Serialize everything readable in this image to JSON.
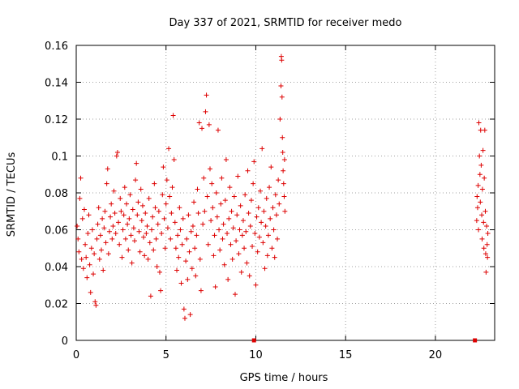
{
  "chart_data": {
    "type": "scatter",
    "title": "Day 337 of 2021, SRMTID for receiver medo",
    "xlabel": "GPS time / hours",
    "ylabel": "SRMTID / TECUs",
    "xlim": [
      0,
      23.3
    ],
    "ylim": [
      0,
      0.16
    ],
    "x_ticks": [
      0,
      5,
      10,
      15,
      20
    ],
    "x_tick_labels": [
      "0",
      "5",
      "10",
      "15",
      "20"
    ],
    "y_ticks": [
      0,
      0.02,
      0.04,
      0.06,
      0.08,
      0.1,
      0.12,
      0.14,
      0.16
    ],
    "y_tick_labels": [
      "0",
      "0.02",
      "0.04",
      "0.06",
      "0.08",
      "0.1",
      "0.12",
      "0.14",
      "0.16"
    ],
    "grid": true,
    "marker": "plus",
    "color": "#dd0000",
    "zero_markers": [
      {
        "x": 9.9,
        "y": 0
      },
      {
        "x": 22.2,
        "y": 0
      }
    ],
    "series": [
      {
        "points": [
          [
            0.05,
            0.062
          ],
          [
            0.1,
            0.055
          ],
          [
            0.15,
            0.048
          ],
          [
            0.2,
            0.077
          ],
          [
            0.25,
            0.088
          ],
          [
            0.3,
            0.044
          ],
          [
            0.35,
            0.066
          ],
          [
            0.4,
            0.039
          ],
          [
            0.45,
            0.071
          ],
          [
            0.5,
            0.052
          ],
          [
            0.55,
            0.045
          ],
          [
            0.6,
            0.034
          ],
          [
            0.65,
            0.058
          ],
          [
            0.7,
            0.068
          ],
          [
            0.75,
            0.041
          ],
          [
            0.8,
            0.026
          ],
          [
            0.85,
            0.05
          ],
          [
            0.9,
            0.06
          ],
          [
            0.95,
            0.036
          ],
          [
            1.0,
            0.047
          ],
          [
            1.05,
            0.021
          ],
          [
            1.1,
            0.019
          ],
          [
            1.15,
            0.055
          ],
          [
            1.2,
            0.063
          ],
          [
            1.25,
            0.072
          ],
          [
            1.3,
            0.044
          ],
          [
            1.35,
            0.057
          ],
          [
            1.4,
            0.049
          ],
          [
            1.45,
            0.066
          ],
          [
            1.5,
            0.038
          ],
          [
            1.55,
            0.061
          ],
          [
            1.6,
            0.07
          ],
          [
            1.65,
            0.053
          ],
          [
            1.7,
            0.085
          ],
          [
            1.75,
            0.093
          ],
          [
            1.8,
            0.047
          ],
          [
            1.85,
            0.059
          ],
          [
            1.9,
            0.067
          ],
          [
            1.95,
            0.074
          ],
          [
            2.0,
            0.055
          ],
          [
            2.05,
            0.062
          ],
          [
            2.1,
            0.081
          ],
          [
            2.15,
            0.069
          ],
          [
            2.2,
            0.058
          ],
          [
            2.25,
            0.1
          ],
          [
            2.3,
            0.102
          ],
          [
            2.35,
            0.064
          ],
          [
            2.4,
            0.052
          ],
          [
            2.45,
            0.077
          ],
          [
            2.5,
            0.07
          ],
          [
            2.55,
            0.045
          ],
          [
            2.6,
            0.06
          ],
          [
            2.65,
            0.068
          ],
          [
            2.7,
            0.083
          ],
          [
            2.75,
            0.055
          ],
          [
            2.8,
            0.074
          ],
          [
            2.85,
            0.063
          ],
          [
            2.9,
            0.049
          ],
          [
            2.95,
            0.066
          ],
          [
            3.0,
            0.079
          ],
          [
            3.05,
            0.057
          ],
          [
            3.1,
            0.042
          ],
          [
            3.15,
            0.071
          ],
          [
            3.2,
            0.061
          ],
          [
            3.25,
            0.054
          ],
          [
            3.3,
            0.087
          ],
          [
            3.35,
            0.096
          ],
          [
            3.4,
            0.068
          ],
          [
            3.45,
            0.075
          ],
          [
            3.5,
            0.059
          ],
          [
            3.55,
            0.048
          ],
          [
            3.6,
            0.082
          ],
          [
            3.65,
            0.065
          ],
          [
            3.7,
            0.073
          ],
          [
            3.75,
            0.056
          ],
          [
            3.8,
            0.046
          ],
          [
            3.85,
            0.069
          ],
          [
            3.9,
            0.058
          ],
          [
            3.95,
            0.062
          ],
          [
            4.0,
            0.044
          ],
          [
            4.05,
            0.077
          ],
          [
            4.1,
            0.053
          ],
          [
            4.15,
            0.024
          ],
          [
            4.2,
            0.06
          ],
          [
            4.25,
            0.067
          ],
          [
            4.3,
            0.049
          ],
          [
            4.35,
            0.085
          ],
          [
            4.4,
            0.072
          ],
          [
            4.45,
            0.055
          ],
          [
            4.5,
            0.04
          ],
          [
            4.55,
            0.063
          ],
          [
            4.6,
            0.07
          ],
          [
            4.65,
            0.037
          ],
          [
            4.7,
            0.027
          ],
          [
            4.75,
            0.058
          ],
          [
            4.8,
            0.079
          ],
          [
            4.85,
            0.094
          ],
          [
            4.9,
            0.066
          ],
          [
            4.95,
            0.05
          ],
          [
            5.0,
            0.074
          ],
          [
            5.05,
            0.087
          ],
          [
            5.1,
            0.061
          ],
          [
            5.15,
            0.104
          ],
          [
            5.2,
            0.078
          ],
          [
            5.25,
            0.055
          ],
          [
            5.3,
            0.069
          ],
          [
            5.35,
            0.083
          ],
          [
            5.4,
            0.122
          ],
          [
            5.45,
            0.098
          ],
          [
            5.5,
            0.064
          ],
          [
            5.55,
            0.05
          ],
          [
            5.6,
            0.038
          ],
          [
            5.65,
            0.057
          ],
          [
            5.7,
            0.045
          ],
          [
            5.75,
            0.072
          ],
          [
            5.8,
            0.06
          ],
          [
            5.85,
            0.031
          ],
          [
            5.9,
            0.052
          ],
          [
            5.95,
            0.066
          ],
          [
            6.0,
            0.017
          ],
          [
            6.05,
            0.012
          ],
          [
            6.1,
            0.043
          ],
          [
            6.15,
            0.055
          ],
          [
            6.2,
            0.033
          ],
          [
            6.25,
            0.068
          ],
          [
            6.3,
            0.048
          ],
          [
            6.35,
            0.014
          ],
          [
            6.4,
            0.059
          ],
          [
            6.45,
            0.039
          ],
          [
            6.5,
            0.062
          ],
          [
            6.55,
            0.075
          ],
          [
            6.6,
            0.05
          ],
          [
            6.65,
            0.035
          ],
          [
            6.7,
            0.057
          ],
          [
            6.75,
            0.082
          ],
          [
            6.8,
            0.069
          ],
          [
            6.85,
            0.118
          ],
          [
            6.9,
            0.044
          ],
          [
            6.95,
            0.027
          ],
          [
            7.0,
            0.115
          ],
          [
            7.05,
            0.063
          ],
          [
            7.1,
            0.088
          ],
          [
            7.15,
            0.07
          ],
          [
            7.2,
            0.124
          ],
          [
            7.25,
            0.133
          ],
          [
            7.3,
            0.078
          ],
          [
            7.35,
            0.052
          ],
          [
            7.4,
            0.117
          ],
          [
            7.45,
            0.093
          ],
          [
            7.5,
            0.065
          ],
          [
            7.55,
            0.085
          ],
          [
            7.6,
            0.072
          ],
          [
            7.65,
            0.046
          ],
          [
            7.7,
            0.057
          ],
          [
            7.75,
            0.029
          ],
          [
            7.8,
            0.08
          ],
          [
            7.85,
            0.067
          ],
          [
            7.9,
            0.114
          ],
          [
            7.95,
            0.06
          ],
          [
            8.0,
            0.049
          ],
          [
            8.05,
            0.074
          ],
          [
            8.1,
            0.088
          ],
          [
            8.15,
            0.055
          ],
          [
            8.2,
            0.063
          ],
          [
            8.25,
            0.041
          ],
          [
            8.3,
            0.076
          ],
          [
            8.35,
            0.098
          ],
          [
            8.4,
            0.058
          ],
          [
            8.45,
            0.033
          ],
          [
            8.5,
            0.066
          ],
          [
            8.55,
            0.083
          ],
          [
            8.6,
            0.052
          ],
          [
            8.65,
            0.07
          ],
          [
            8.7,
            0.044
          ],
          [
            8.75,
            0.061
          ],
          [
            8.8,
            0.078
          ],
          [
            8.85,
            0.025
          ],
          [
            8.9,
            0.054
          ],
          [
            8.95,
            0.068
          ],
          [
            9.0,
            0.089
          ],
          [
            9.05,
            0.047
          ],
          [
            9.1,
            0.06
          ],
          [
            9.15,
            0.073
          ],
          [
            9.2,
            0.037
          ],
          [
            9.25,
            0.057
          ],
          [
            9.3,
            0.065
          ],
          [
            9.35,
            0.05
          ],
          [
            9.4,
            0.079
          ],
          [
            9.45,
            0.059
          ],
          [
            9.5,
            0.042
          ],
          [
            9.55,
            0.092
          ],
          [
            9.6,
            0.069
          ],
          [
            9.65,
            0.035
          ],
          [
            9.7,
            0.062
          ],
          [
            9.75,
            0.076
          ],
          [
            9.8,
            0.051
          ],
          [
            9.85,
            0.085
          ],
          [
            9.9,
            0.097
          ],
          [
            9.95,
            0.058
          ],
          [
            10.0,
            0.03
          ],
          [
            10.05,
            0.067
          ],
          [
            10.1,
            0.048
          ],
          [
            10.15,
            0.072
          ],
          [
            10.2,
            0.056
          ],
          [
            10.25,
            0.081
          ],
          [
            10.3,
            0.064
          ],
          [
            10.35,
            0.104
          ],
          [
            10.4,
            0.053
          ],
          [
            10.45,
            0.07
          ],
          [
            10.5,
            0.039
          ],
          [
            10.55,
            0.062
          ],
          [
            10.6,
            0.077
          ],
          [
            10.65,
            0.046
          ],
          [
            10.7,
            0.057
          ],
          [
            10.75,
            0.083
          ],
          [
            10.8,
            0.066
          ],
          [
            10.85,
            0.094
          ],
          [
            10.9,
            0.05
          ],
          [
            10.95,
            0.072
          ],
          [
            11.0,
            0.06
          ],
          [
            11.05,
            0.045
          ],
          [
            11.1,
            0.079
          ],
          [
            11.15,
            0.068
          ],
          [
            11.2,
            0.055
          ],
          [
            11.25,
            0.087
          ],
          [
            11.3,
            0.074
          ],
          [
            11.35,
            0.12
          ],
          [
            11.4,
            0.138
          ],
          [
            11.42,
            0.154
          ],
          [
            11.44,
            0.152
          ],
          [
            11.46,
            0.132
          ],
          [
            11.48,
            0.11
          ],
          [
            11.5,
            0.102
          ],
          [
            11.52,
            0.092
          ],
          [
            11.55,
            0.085
          ],
          [
            11.58,
            0.078
          ],
          [
            11.6,
            0.098
          ],
          [
            11.62,
            0.07
          ],
          [
            22.3,
            0.065
          ],
          [
            22.32,
            0.078
          ],
          [
            22.35,
            0.072
          ],
          [
            22.38,
            0.084
          ],
          [
            22.4,
            0.06
          ],
          [
            22.42,
            0.118
          ],
          [
            22.45,
            0.1
          ],
          [
            22.48,
            0.09
          ],
          [
            22.5,
            0.075
          ],
          [
            22.52,
            0.114
          ],
          [
            22.55,
            0.095
          ],
          [
            22.58,
            0.068
          ],
          [
            22.6,
            0.055
          ],
          [
            22.62,
            0.082
          ],
          [
            22.65,
            0.103
          ],
          [
            22.68,
            0.064
          ],
          [
            22.7,
            0.05
          ],
          [
            22.72,
            0.088
          ],
          [
            22.75,
            0.114
          ],
          [
            22.78,
            0.07
          ],
          [
            22.8,
            0.047
          ],
          [
            22.82,
            0.037
          ],
          [
            22.85,
            0.062
          ],
          [
            22.88,
            0.052
          ],
          [
            22.9,
            0.045
          ],
          [
            22.92,
            0.058
          ]
        ]
      }
    ]
  }
}
